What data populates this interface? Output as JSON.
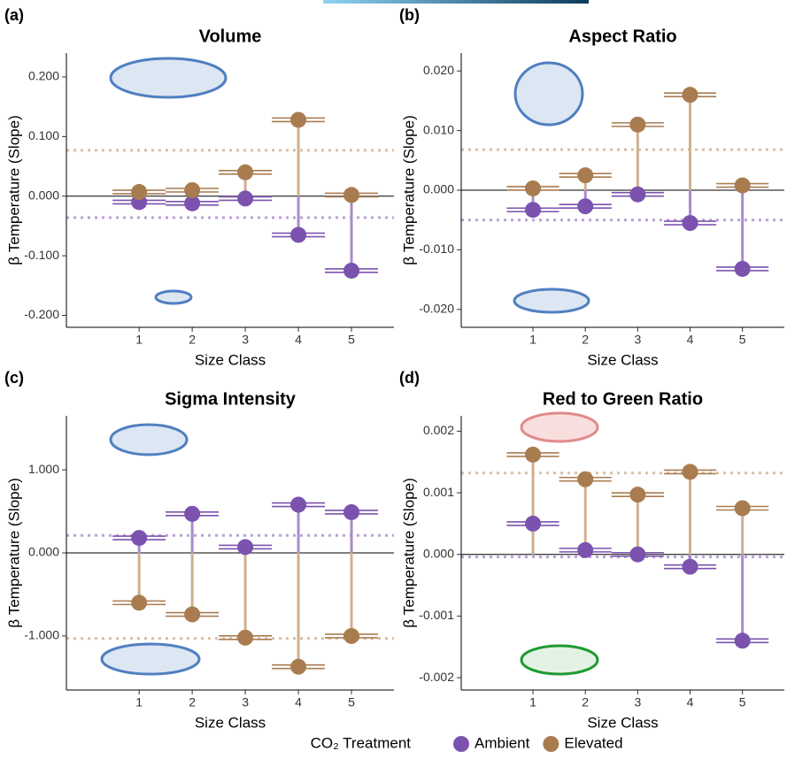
{
  "legend_title": "CO₂ Treatment",
  "chart_data": [
    {
      "type": "dot",
      "label": "(a)",
      "title": "Volume",
      "ylabel": "β  Temperature (Slope)",
      "xlabel": "Size Class",
      "categories": [
        "1",
        "2",
        "3",
        "4",
        "5"
      ],
      "series": [
        {
          "name": "Ambient",
          "color": "#7b52ae",
          "values": [
            -0.01,
            -0.012,
            -0.004,
            -0.065,
            -0.125
          ],
          "mean": -0.036
        },
        {
          "name": "Elevated",
          "color": "#a97c50",
          "values": [
            0.007,
            0.01,
            0.04,
            0.128,
            0.002
          ],
          "mean": 0.077
        }
      ],
      "ylim": [
        -0.22,
        0.24
      ],
      "yticks": [
        {
          "value": -0.2,
          "label": "-0.200"
        },
        {
          "value": -0.1,
          "label": "-0.100"
        },
        {
          "value": 0,
          "label": "0.000"
        },
        {
          "value": 0.1,
          "label": "0.100"
        },
        {
          "value": 0.2,
          "label": "0.200"
        }
      ]
    },
    {
      "type": "dot",
      "label": "(b)",
      "title": "Aspect Ratio",
      "ylabel": "β  Temperature (Slope)",
      "xlabel": "Size Class",
      "categories": [
        "1",
        "2",
        "3",
        "4",
        "5"
      ],
      "series": [
        {
          "name": "Ambient",
          "color": "#7b52ae",
          "values": [
            -0.0033,
            -0.0027,
            -0.0007,
            -0.0055,
            -0.0132
          ],
          "mean": -0.005
        },
        {
          "name": "Elevated",
          "color": "#a97c50",
          "values": [
            0.0003,
            0.0025,
            0.011,
            0.016,
            0.0008
          ],
          "mean": 0.0068
        }
      ],
      "ylim": [
        -0.023,
        0.023
      ],
      "yticks": [
        {
          "value": -0.02,
          "label": "-0.020"
        },
        {
          "value": -0.01,
          "label": "-0.010"
        },
        {
          "value": 0,
          "label": "0.000"
        },
        {
          "value": 0.01,
          "label": "0.010"
        },
        {
          "value": 0.02,
          "label": "0.020"
        }
      ]
    },
    {
      "type": "dot",
      "label": "(c)",
      "title": "Sigma Intensity",
      "ylabel": "β  Temperature (Slope)",
      "xlabel": "Size Class",
      "categories": [
        "1",
        "2",
        "3",
        "4",
        "5"
      ],
      "series": [
        {
          "name": "Ambient",
          "color": "#7b52ae",
          "values": [
            0.18,
            0.47,
            0.07,
            0.58,
            0.49
          ],
          "mean": 0.21
        },
        {
          "name": "Elevated",
          "color": "#a97c50",
          "values": [
            -0.6,
            -0.74,
            -1.02,
            -1.37,
            -1.0
          ],
          "mean": -1.03
        }
      ],
      "ylim": [
        -1.65,
        1.65
      ],
      "yticks": [
        {
          "value": -1,
          "label": "-1.000"
        },
        {
          "value": 0,
          "label": "0.000"
        },
        {
          "value": 1,
          "label": "1.000"
        }
      ]
    },
    {
      "type": "dot",
      "label": "(d)",
      "title": "Red to Green Ratio",
      "ylabel": "β  Temperature (Slope)",
      "xlabel": "Size Class",
      "categories": [
        "1",
        "2",
        "3",
        "4",
        "5"
      ],
      "series": [
        {
          "name": "Ambient",
          "color": "#7b52ae",
          "values": [
            0.0005,
            7e-05,
            0.0,
            -0.0002,
            -0.0014
          ],
          "mean": -4e-05
        },
        {
          "name": "Elevated",
          "color": "#a97c50",
          "values": [
            0.00162,
            0.00122,
            0.00097,
            0.00134,
            0.00075
          ],
          "mean": 0.00132
        }
      ],
      "ylim": [
        -0.0022,
        0.00225
      ],
      "yticks": [
        {
          "value": -0.002,
          "label": "-0.002"
        },
        {
          "value": -0.001,
          "label": "-0.001"
        },
        {
          "value": 0,
          "label": "0.000"
        },
        {
          "value": 0.001,
          "label": "0.001"
        },
        {
          "value": 0.002,
          "label": "0.002"
        }
      ]
    }
  ]
}
